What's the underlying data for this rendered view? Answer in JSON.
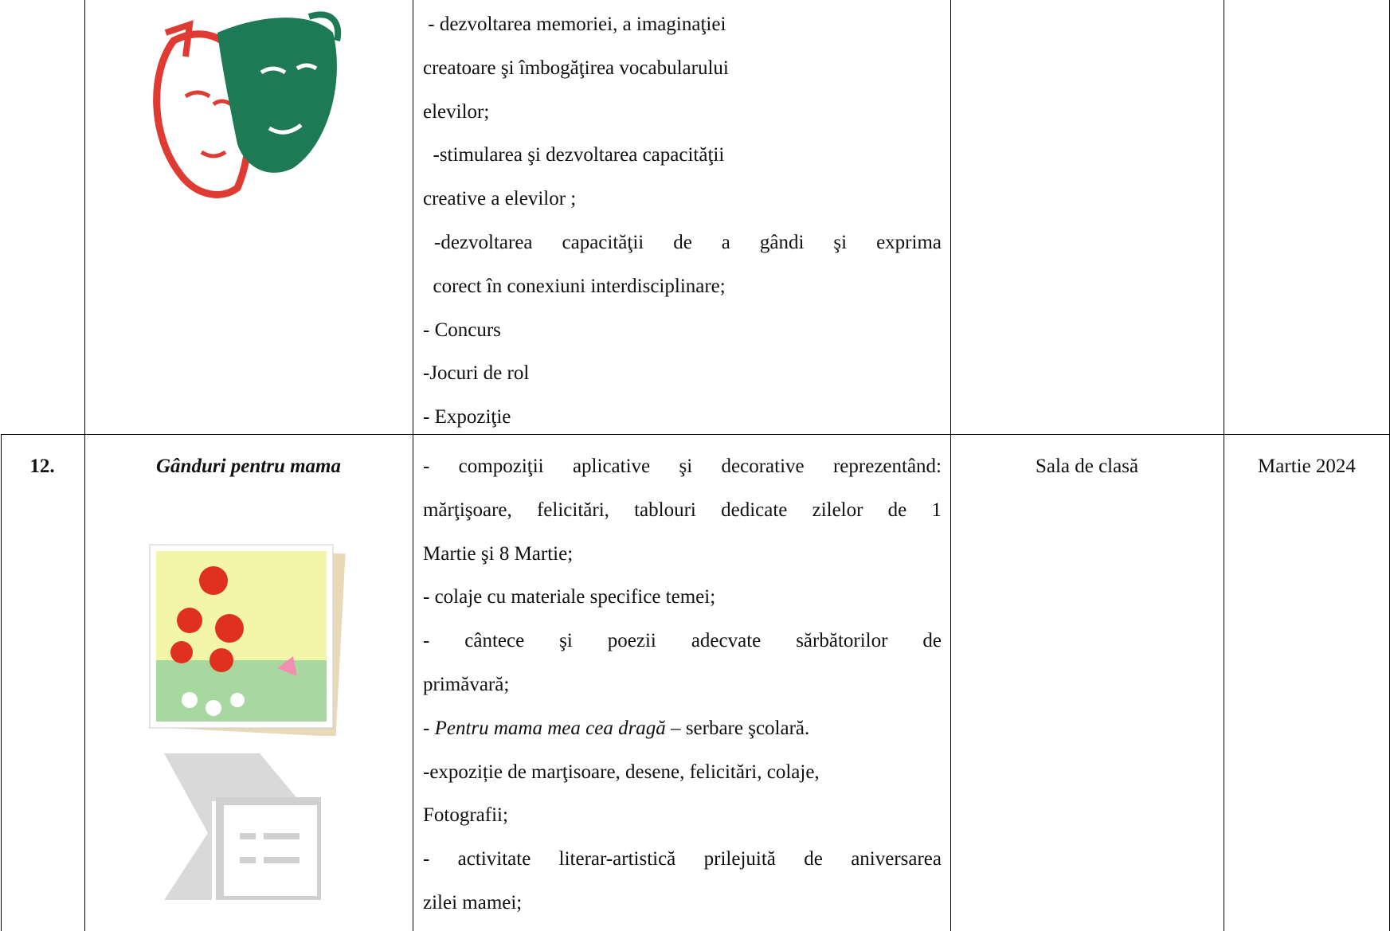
{
  "table": {
    "rows": [
      {
        "lines": [
          " - dezvoltarea memoriei, a imaginaţiei",
          "creatoare şi îmbogăţirea vocabularului",
          "elevilor;",
          "  -stimularea şi dezvoltarea capacităţii",
          "creative a elevilor ;",
          "  -dezvoltarea capacităţii de a gândi şi exprima",
          "  corect în conexiuni interdisciplinare;",
          "- Concurs",
          "-Jocuri de rol",
          "- Expoziţie"
        ]
      },
      {
        "number": "12.",
        "title": "Gânduri pentru mama",
        "location": "Sala de clasă",
        "date": "Martie 2024",
        "lines": [
          "- compoziţii aplicative şi decorative reprezentând:",
          "mărţişoare, felicitări, tablouri dedicate zilelor de 1",
          "Martie şi 8 Martie;",
          "- colaje cu materiale specifice temei;",
          "- cântece şi poezii adecvate sărbătorilor de",
          "primăvară;",
          {
            "prefix": "- ",
            "italic": "Pentru mama mea cea dragă",
            "suffix": " – serbare şcolară."
          },
          "-expoziție de marţisoare, desene, felicitări, colaje,",
          "Fotografii;",
          "- activitate literar-artistică prilejuită de aniversarea",
          "zilei mamei;"
        ]
      }
    ]
  }
}
